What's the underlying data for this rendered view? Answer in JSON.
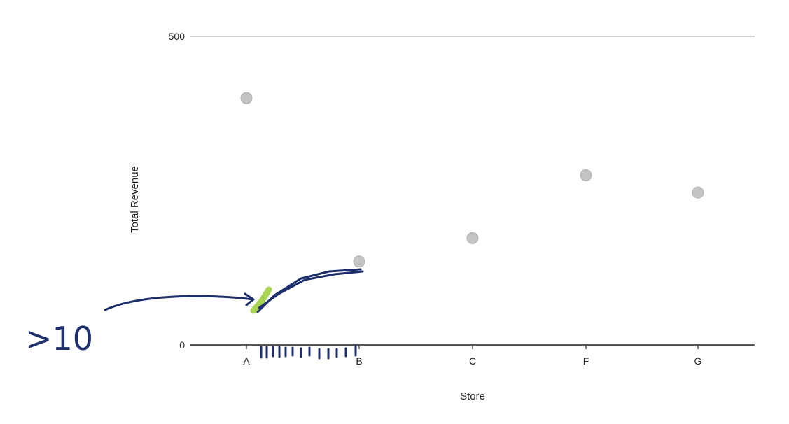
{
  "chart_data": {
    "type": "scatter",
    "title": "",
    "xlabel": "Store",
    "ylabel": "Total Revenue",
    "categories": [
      "A",
      "B",
      "C",
      "F",
      "G"
    ],
    "values": [
      400,
      135,
      173,
      275,
      247
    ],
    "ylim": [
      0,
      500
    ],
    "yticks": [
      0,
      500
    ],
    "grid": false,
    "point_color": "#c4c4c4",
    "axis_color": "#555555"
  },
  "annotation": {
    "handwritten_text": ">10",
    "ink_color": "#1c2f6b",
    "highlight_color": "#9acd32"
  }
}
